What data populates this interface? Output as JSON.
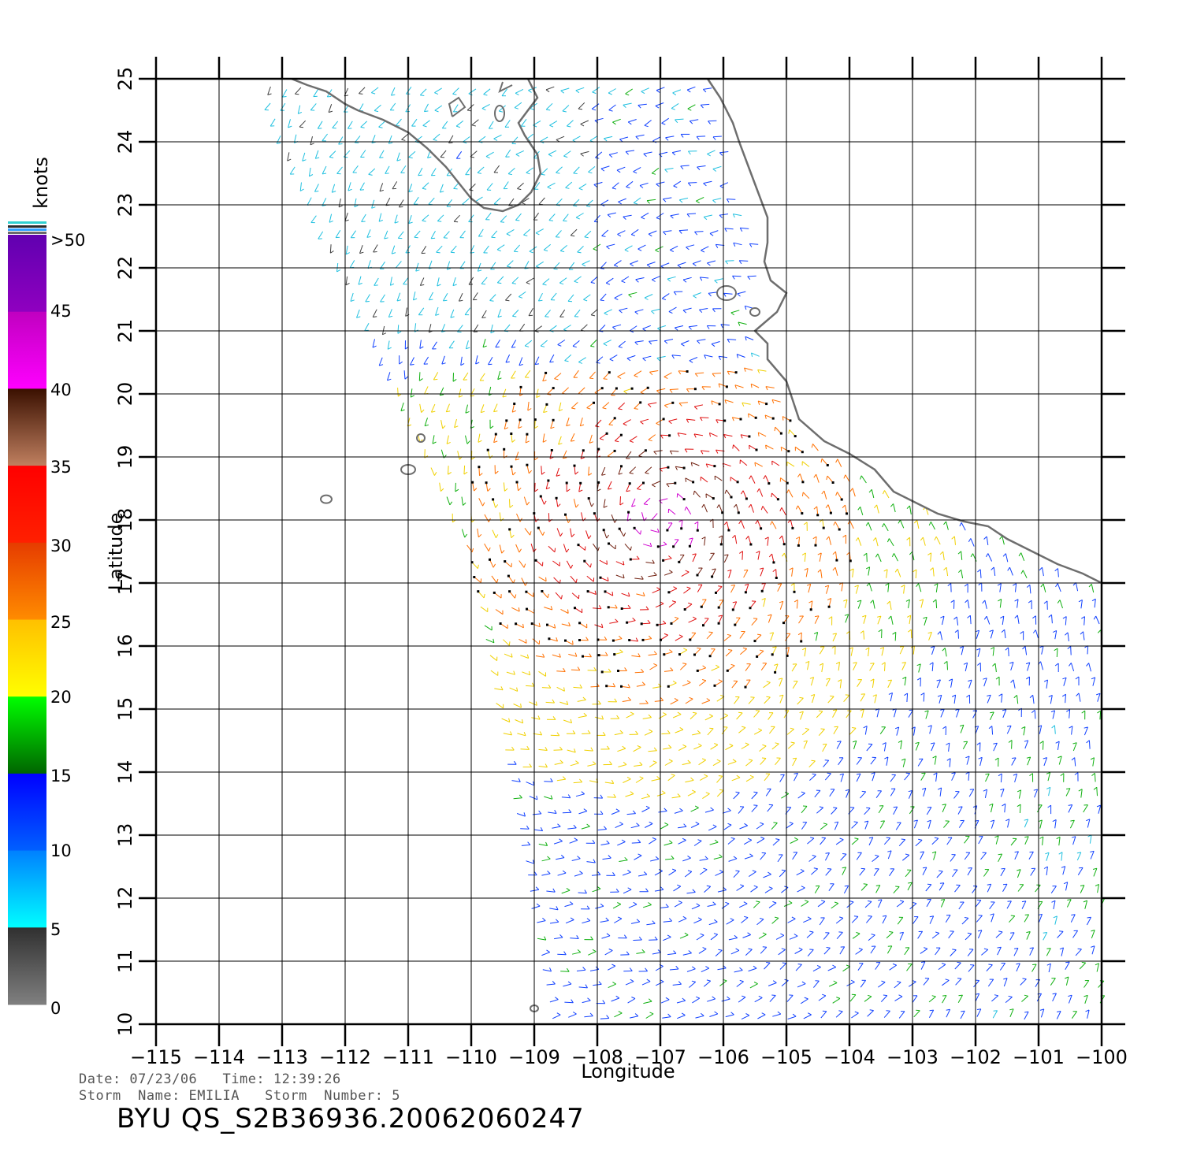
{
  "map": {
    "axes": {
      "xlabel": "Longitude",
      "ylabel": "Latitude",
      "lon_range": [
        -115,
        -100
      ],
      "lat_range": [
        10,
        25
      ],
      "lon_ticks": [
        "−115",
        "−114",
        "−113",
        "−112",
        "−111",
        "−110",
        "−109",
        "−108",
        "−107",
        "−106",
        "−105",
        "−104",
        "−103",
        "−102",
        "−101",
        "−100"
      ],
      "lat_ticks": [
        "10",
        "11",
        "12",
        "13",
        "14",
        "15",
        "16",
        "17",
        "18",
        "19",
        "20",
        "21",
        "22",
        "23",
        "24",
        "25"
      ],
      "grid": true
    },
    "legend": {
      "unit": "knots",
      "position": "left",
      "labels": [
        ">50",
        "45",
        "40",
        "35",
        "30",
        "25",
        "20",
        "15",
        "10",
        "5",
        "0"
      ],
      "colors": {
        "0_5": [
          "#808080",
          "#303030"
        ],
        "5_10": [
          "#00ffff",
          "#0080ff"
        ],
        "10_15": [
          "#0060ff",
          "#0000ff"
        ],
        "15_20": [
          "#006400",
          "#00ff00"
        ],
        "20_25": [
          "#ffff00",
          "#ffc000"
        ],
        "25_30": [
          "#ff8c00",
          "#e63c00"
        ],
        "30_35": [
          "#ff2000",
          "#ff0000"
        ],
        "35_40": [
          "#c08060",
          "#3a1000"
        ],
        "40_45": [
          "#ff00ff",
          "#c000c0"
        ],
        "45_50": [
          "#9000c0",
          "#6000b0"
        ]
      }
    },
    "features": {
      "coastline_color": "#6e6e6e",
      "wind_barbs": "colored by speed",
      "storm_center_region": "around 18N 107W"
    }
  },
  "footer": {
    "date_line": "Date: 07/23/06   Time: 12:39:26",
    "storm_line": "Storm  Name: EMILIA   Storm  Number: 5",
    "title": "BYU  QS_S2B36936.20062060247"
  }
}
